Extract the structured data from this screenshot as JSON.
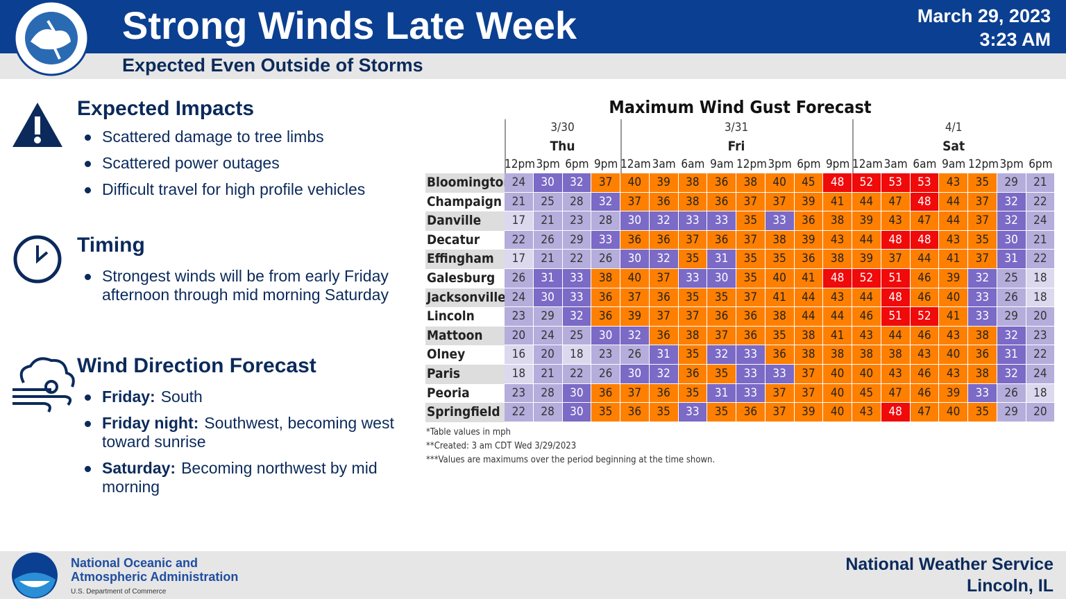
{
  "header": {
    "title": "Strong Winds Late Week",
    "subtitle": "Expected Even Outside of Storms",
    "date": "March 29, 2023",
    "time": "3:23 AM"
  },
  "impacts": {
    "title": "Expected Impacts",
    "items": [
      "Scattered damage to tree limbs",
      "Scattered power outages",
      "Difficult travel for high profile vehicles"
    ]
  },
  "timing": {
    "title": "Timing",
    "items": [
      "Strongest winds will be from early Friday afternoon through mid morning Saturday"
    ]
  },
  "wind": {
    "title": "Wind Direction Forecast",
    "items": [
      {
        "label": "Friday:",
        "text": "South"
      },
      {
        "label": "Friday night:",
        "text": "Southwest, becoming west toward sunrise"
      },
      {
        "label": "Saturday:",
        "text": "Becoming northwest by mid morning"
      }
    ]
  },
  "table": {
    "title": "Maximum Wind Gust Forecast",
    "days": [
      {
        "date": "3/30",
        "day": "Thu",
        "times": [
          "12pm",
          "3pm",
          "6pm",
          "9pm"
        ]
      },
      {
        "date": "3/31",
        "day": "Fri",
        "times": [
          "12am",
          "3am",
          "6am",
          "9am",
          "12pm",
          "3pm",
          "6pm",
          "9pm"
        ]
      },
      {
        "date": "4/1",
        "day": "Sat",
        "times": [
          "12am",
          "3am",
          "6am",
          "9am",
          "12pm",
          "3pm",
          "6pm"
        ]
      }
    ],
    "rows": [
      {
        "name": "Bloomington",
        "values": [
          24,
          30,
          32,
          37,
          40,
          39,
          38,
          36,
          38,
          40,
          45,
          48,
          52,
          53,
          53,
          43,
          35,
          29,
          21
        ]
      },
      {
        "name": "Champaign",
        "values": [
          21,
          25,
          28,
          32,
          37,
          36,
          38,
          36,
          37,
          37,
          39,
          41,
          44,
          47,
          48,
          44,
          37,
          32,
          22
        ]
      },
      {
        "name": "Danville",
        "values": [
          17,
          21,
          23,
          28,
          30,
          32,
          33,
          33,
          35,
          33,
          36,
          38,
          39,
          43,
          47,
          44,
          37,
          32,
          24
        ]
      },
      {
        "name": "Decatur",
        "values": [
          22,
          26,
          29,
          33,
          36,
          36,
          37,
          36,
          37,
          38,
          39,
          43,
          44,
          48,
          48,
          43,
          35,
          30,
          21
        ]
      },
      {
        "name": "Effingham",
        "values": [
          17,
          21,
          22,
          26,
          30,
          32,
          35,
          31,
          35,
          35,
          36,
          38,
          39,
          37,
          44,
          41,
          37,
          31,
          22
        ]
      },
      {
        "name": "Galesburg",
        "values": [
          26,
          31,
          33,
          38,
          40,
          37,
          33,
          30,
          35,
          40,
          41,
          48,
          52,
          51,
          46,
          39,
          32,
          25,
          18
        ]
      },
      {
        "name": "Jacksonville",
        "values": [
          24,
          30,
          33,
          36,
          37,
          36,
          35,
          35,
          37,
          41,
          44,
          43,
          44,
          48,
          46,
          40,
          33,
          26,
          18
        ]
      },
      {
        "name": "Lincoln",
        "values": [
          23,
          29,
          32,
          36,
          39,
          37,
          37,
          36,
          36,
          38,
          44,
          44,
          46,
          51,
          52,
          41,
          33,
          29,
          20
        ]
      },
      {
        "name": "Mattoon",
        "values": [
          20,
          24,
          25,
          30,
          32,
          36,
          38,
          37,
          36,
          35,
          38,
          41,
          43,
          44,
          46,
          43,
          38,
          32,
          23
        ]
      },
      {
        "name": "Olney",
        "values": [
          16,
          20,
          18,
          23,
          26,
          31,
          35,
          32,
          33,
          36,
          38,
          38,
          38,
          38,
          43,
          40,
          36,
          31,
          22
        ]
      },
      {
        "name": "Paris",
        "values": [
          18,
          21,
          22,
          26,
          30,
          32,
          36,
          35,
          33,
          33,
          37,
          40,
          40,
          43,
          46,
          43,
          38,
          32,
          24
        ]
      },
      {
        "name": "Peoria",
        "values": [
          23,
          28,
          30,
          36,
          37,
          36,
          35,
          31,
          33,
          37,
          37,
          40,
          45,
          47,
          46,
          39,
          33,
          26,
          18
        ]
      },
      {
        "name": "Springfield",
        "values": [
          22,
          28,
          30,
          35,
          36,
          35,
          33,
          35,
          36,
          37,
          39,
          40,
          43,
          48,
          47,
          40,
          35,
          29,
          20
        ]
      }
    ],
    "notes": [
      "*Table values in mph",
      "**Created: 3 am CDT Wed 3/29/2023",
      "***Values are maximums over the period beginning at the time shown."
    ]
  },
  "footer": {
    "agency": [
      "National Oceanic and",
      "Atmospheric Administration"
    ],
    "department": "U.S. Department of Commerce",
    "office": [
      "National Weather Service",
      "Lincoln, IL"
    ]
  }
}
